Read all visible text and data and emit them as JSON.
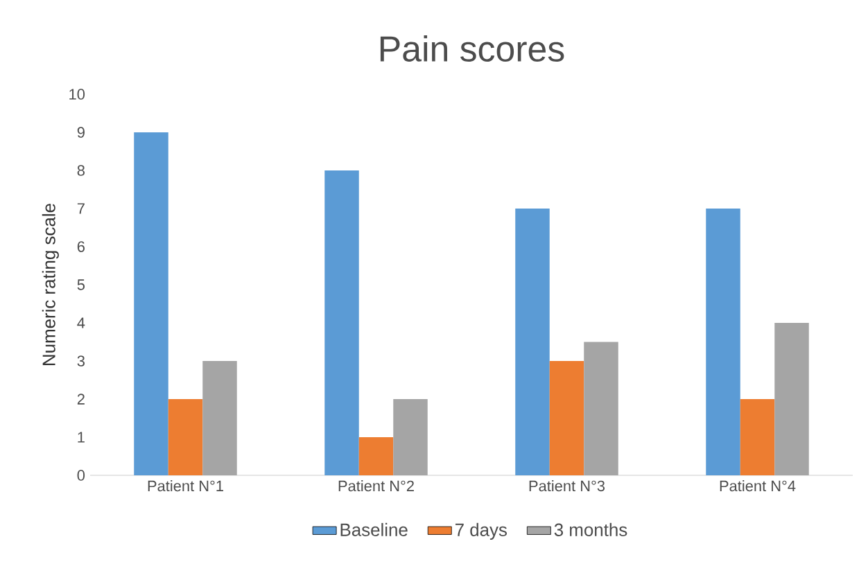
{
  "chart_data": {
    "type": "bar",
    "title": "Pain scores",
    "ylabel": "Numeric rating scale",
    "categories": [
      "Patient N°1",
      "Patient N°2",
      "Patient N°3",
      "Patient N°4"
    ],
    "series": [
      {
        "name": "Baseline",
        "color": "#5b9bd5",
        "values": [
          9,
          8,
          7,
          7
        ]
      },
      {
        "name": "7 days",
        "color": "#ed7d31",
        "values": [
          2,
          1,
          3,
          2
        ]
      },
      {
        "name": "3 months",
        "color": "#a5a5a5",
        "values": [
          3,
          2,
          3.5,
          4
        ]
      }
    ],
    "ylim": [
      0,
      10
    ],
    "yticks": [
      0,
      1,
      2,
      3,
      4,
      5,
      6,
      7,
      8,
      9,
      10
    ],
    "grid": false,
    "legend": "bottom"
  }
}
